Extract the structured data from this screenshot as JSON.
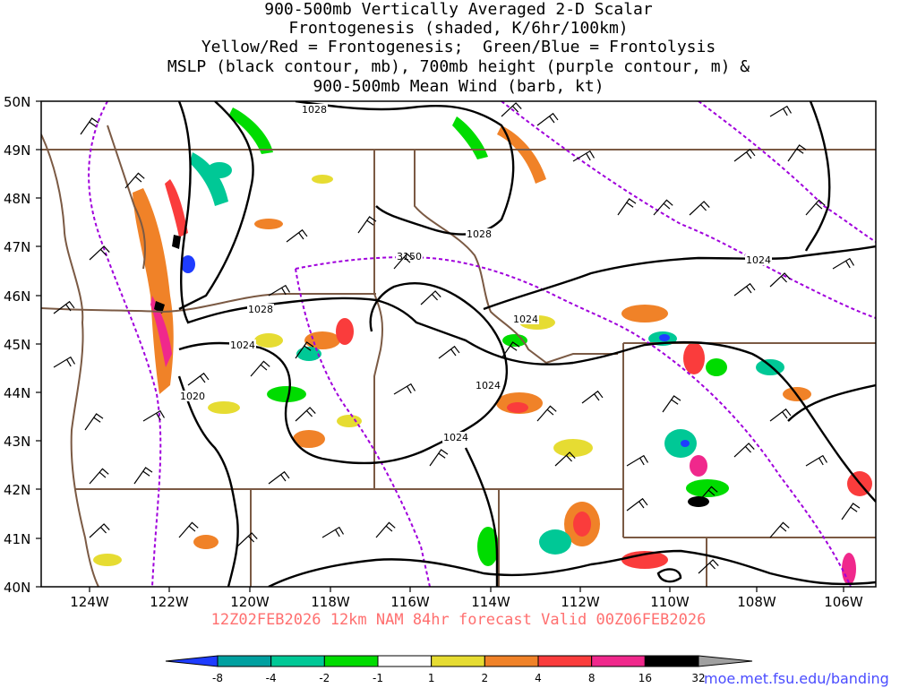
{
  "title_lines": [
    "900-500mb Vertically Averaged 2-D Scalar",
    "Frontogenesis (shaded, K/6hr/100km)",
    "Yellow/Red = Frontogenesis;  Green/Blue = Frontolysis",
    "MSLP (black contour, mb), 700mb height (purple contour, m) &",
    "900-500mb Mean Wind (barb, kt)"
  ],
  "lat_labels": [
    "50N",
    "49N",
    "48N",
    "47N",
    "46N",
    "45N",
    "44N",
    "43N",
    "42N",
    "41N",
    "40N"
  ],
  "lon_labels": [
    "124W",
    "122W",
    "120W",
    "118W",
    "116W",
    "114W",
    "112W",
    "110W",
    "108W",
    "106W"
  ],
  "contour_labels": {
    "mslp": [
      "1028",
      "1028",
      "1028",
      "1024",
      "1024",
      "1024",
      "1024",
      "1024",
      "1020"
    ],
    "height_700": [
      "3150"
    ]
  },
  "valid_text": "12Z02FEB2026 12km NAM 84hr forecast Valid 00Z06FEB2026",
  "colorbar": {
    "ticks": [
      "-8",
      "-4",
      "-2",
      "-1",
      "1",
      "2",
      "4",
      "8",
      "16",
      "32"
    ],
    "colors": [
      "#1e3cff",
      "#00a0a0",
      "#00c896",
      "#00dc00",
      "#ffffff",
      "#e6dc32",
      "#f08228",
      "#fa3c3c",
      "#f0288c",
      "#000000",
      "#a0a0a0"
    ]
  },
  "map_colors": {
    "borders": "#7b5a44",
    "mslp": "#000000",
    "height_700": "#a000dc",
    "barbs": "#000000"
  },
  "credit": "moe.met.fsu.edu/banding"
}
